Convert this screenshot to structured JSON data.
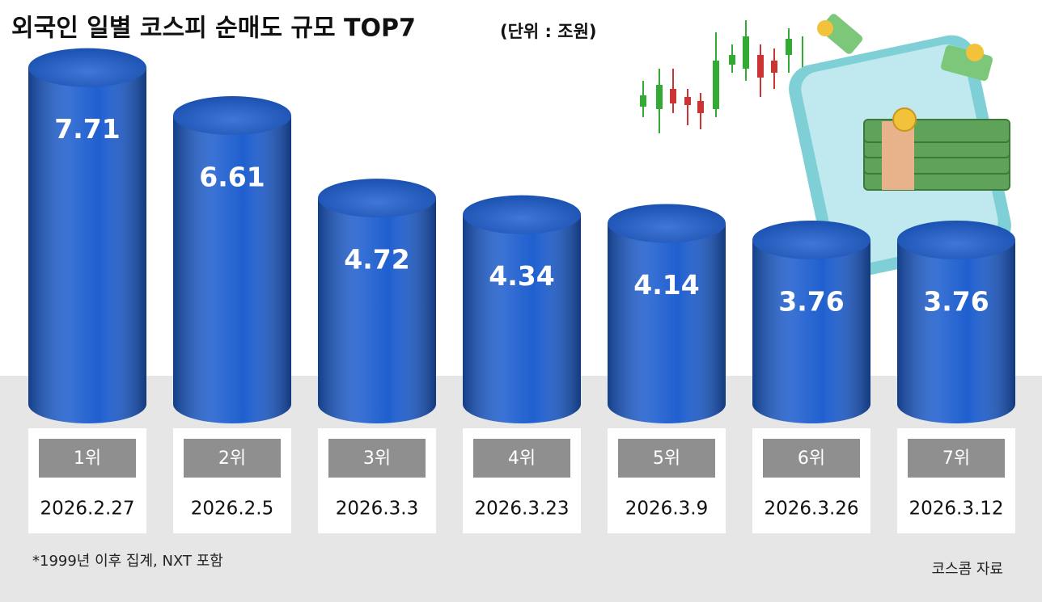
{
  "chart_data": {
    "type": "bar",
    "title": "외국인 일별 코스피 순매도 규모 TOP7",
    "unit": "(단위 : 조원)",
    "categories": [
      "1위",
      "2위",
      "3위",
      "4위",
      "5위",
      "6위",
      "7위"
    ],
    "dates": [
      "2026.2.27",
      "2026.2.5",
      "2026.3.3",
      "2026.3.23",
      "2026.3.9",
      "2026.3.26",
      "2026.3.12"
    ],
    "values": [
      7.71,
      6.61,
      4.72,
      4.34,
      4.14,
      3.76,
      3.76
    ],
    "color": "#1f5fcf",
    "note": "*1999년 이후 집계, NXT 포함",
    "source": "코스콤 자료"
  }
}
